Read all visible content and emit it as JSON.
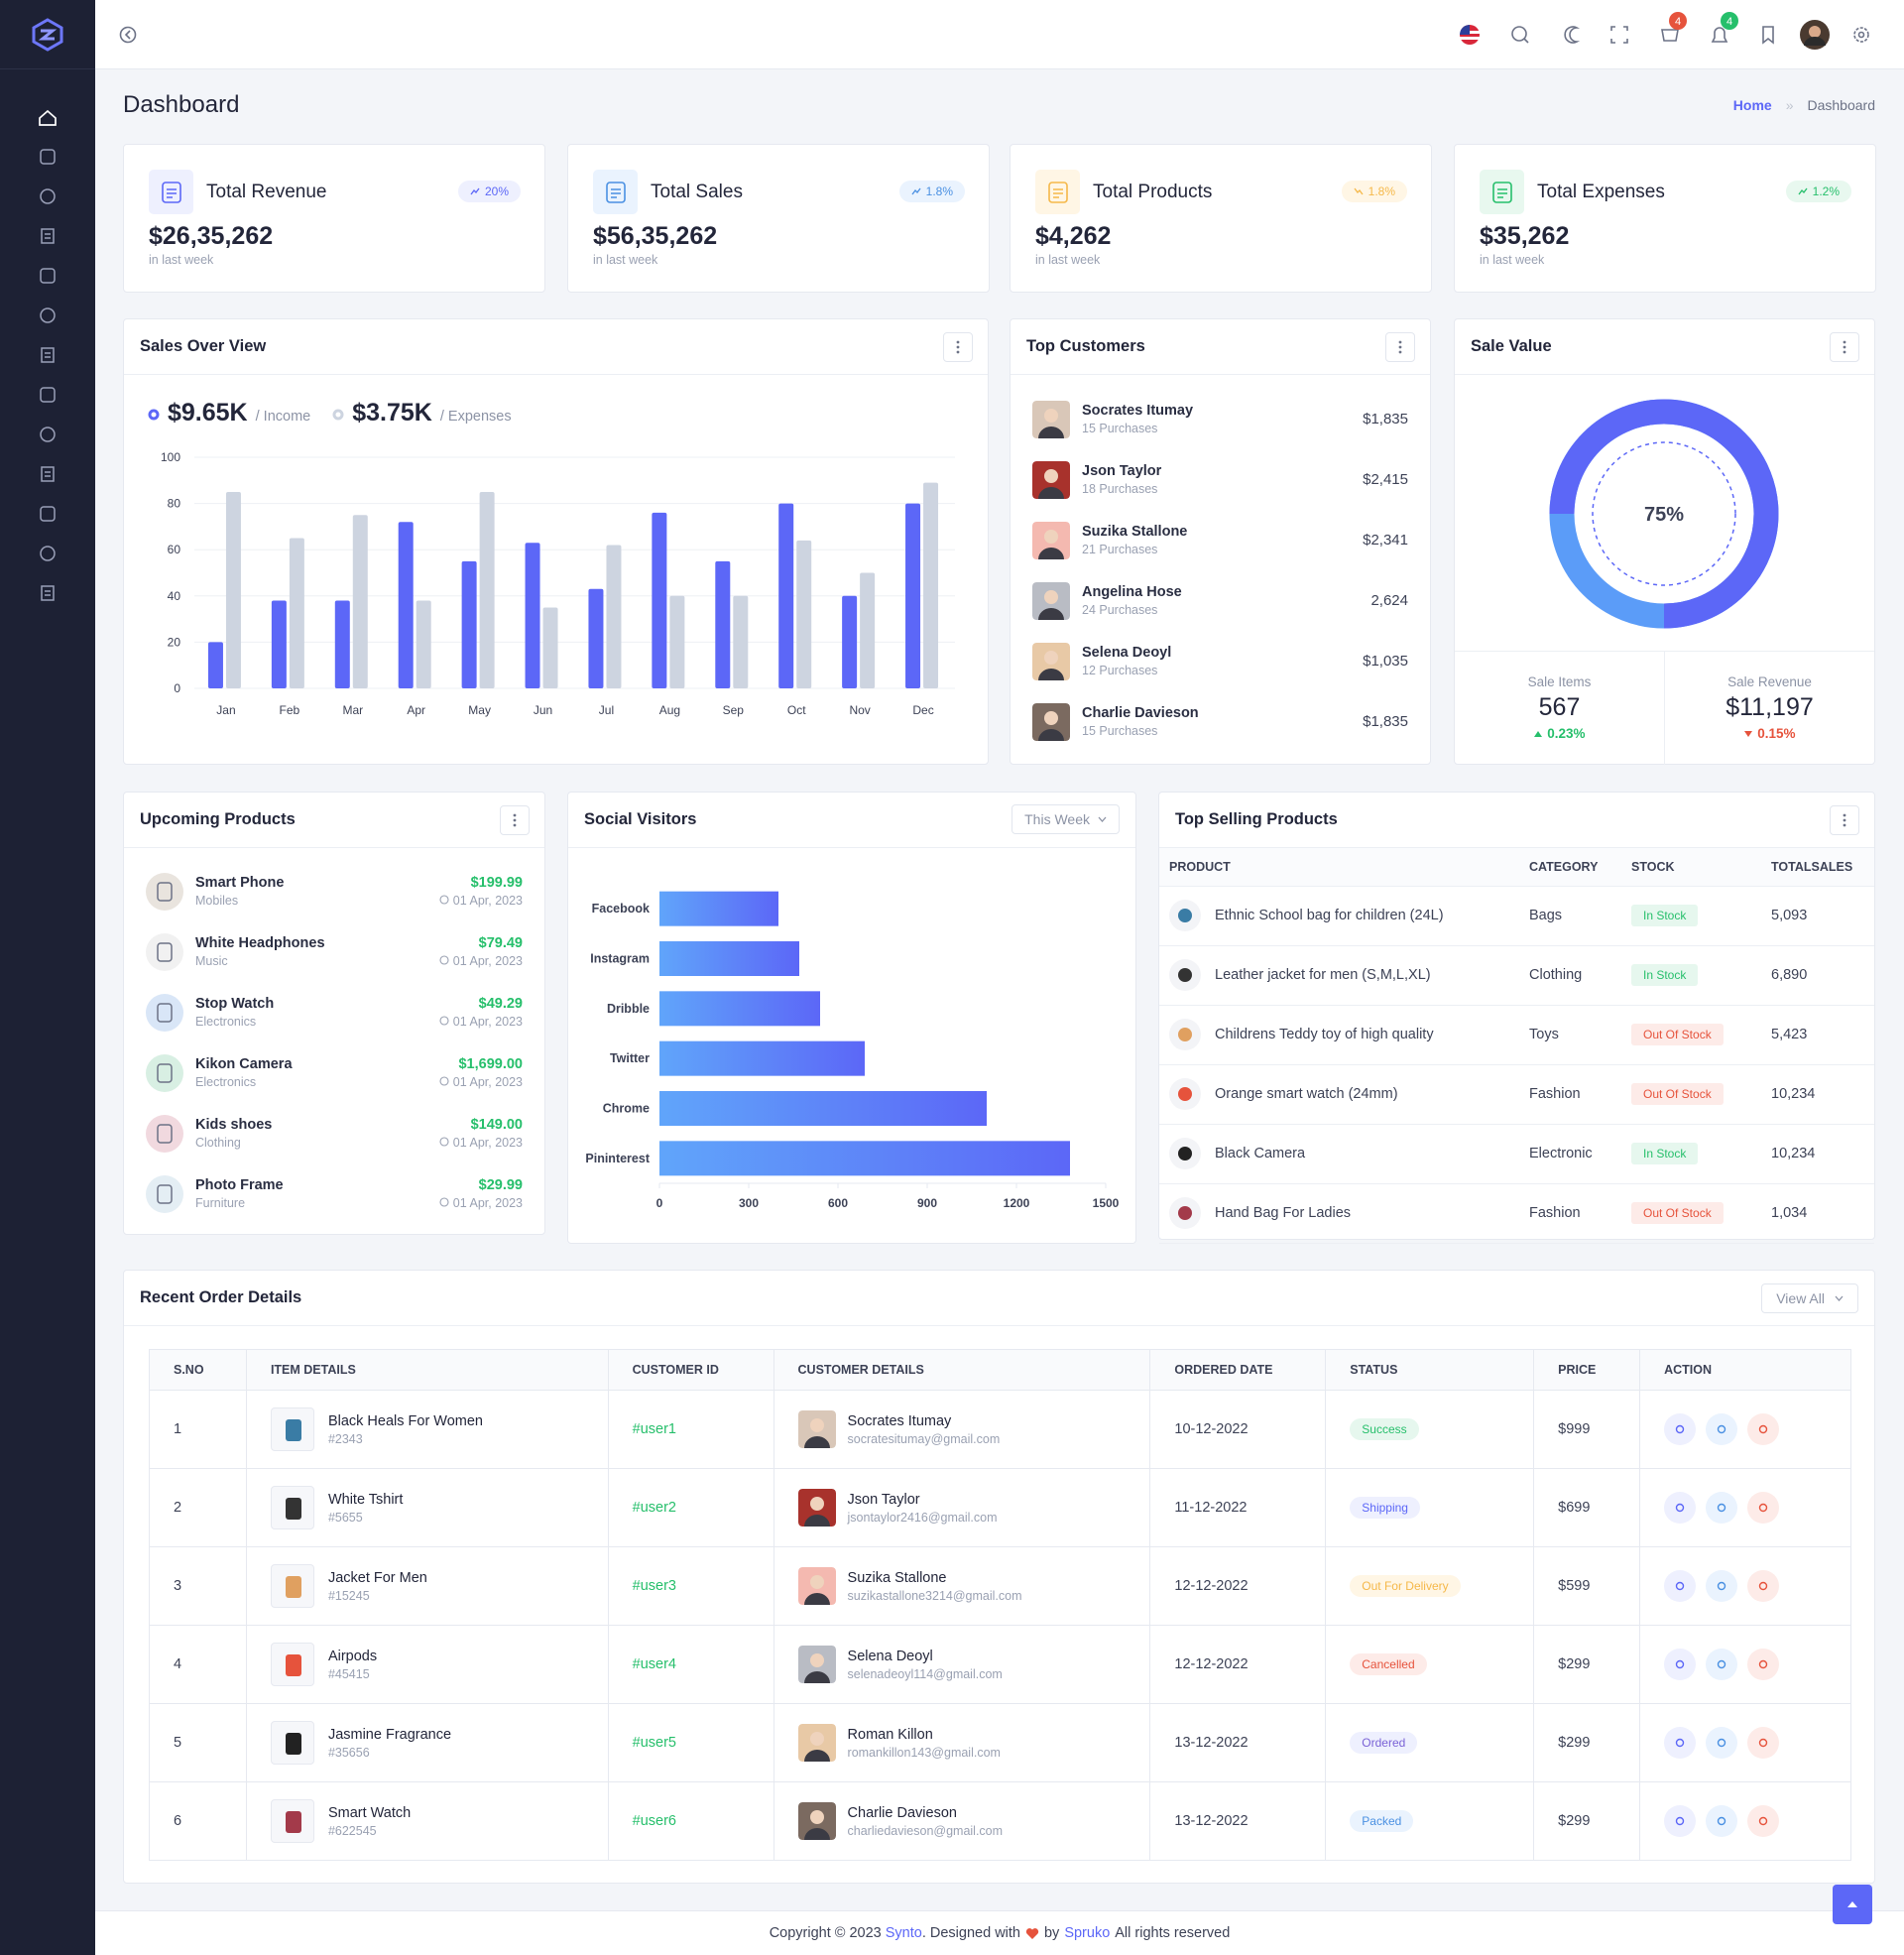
{
  "header": {
    "cart_badge": 4,
    "notifications_badge": 4
  },
  "page": {
    "title": "Dashboard",
    "breadcrumb": [
      "Home",
      "Dashboard"
    ]
  },
  "stats": [
    {
      "title": "Total Revenue",
      "value": "$26,35,262",
      "change": "20%",
      "note": "in last week"
    },
    {
      "title": "Total Sales",
      "value": "$56,35,262",
      "change": "1.8%",
      "note": "in last week"
    },
    {
      "title": "Total Products",
      "value": "$4,262",
      "change": "1.8%",
      "note": "in last week"
    },
    {
      "title": "Total Expenses",
      "value": "$35,262",
      "change": "1.2%",
      "note": "in last week"
    }
  ],
  "sales_overview": {
    "title": "Sales Over View",
    "income": "$9.65K",
    "expenses": "$3.75K"
  },
  "top_customers": {
    "title": "Top Customers",
    "items": [
      {
        "name": "Socrates Itumay",
        "purchases": "15 Purchases",
        "amount": "$1,835"
      },
      {
        "name": "Json Taylor",
        "purchases": "18 Purchases",
        "amount": "$2,415"
      },
      {
        "name": "Suzika Stallone",
        "purchases": "21 Purchases",
        "amount": "$2,341"
      },
      {
        "name": "Angelina Hose",
        "purchases": "24 Purchases",
        "amount": "2,624"
      },
      {
        "name": "Selena Deoyl",
        "purchases": "12 Purchases",
        "amount": "$1,035"
      },
      {
        "name": "Charlie Davieson",
        "purchases": "15 Purchases",
        "amount": "$1,835"
      }
    ]
  },
  "sale_value": {
    "title": "Sale Value",
    "items_label": "Sale Items",
    "items": "567",
    "items_change": "0.23%",
    "revenue_label": "Sale Revenue",
    "revenue": "$11,197",
    "revenue_change": "0.15%"
  },
  "upcoming_products": {
    "title": "Upcoming Products",
    "items": [
      {
        "name": "Smart Phone",
        "category": "Mobiles",
        "price": "$199.99",
        "date": "01 Apr, 2023"
      },
      {
        "name": "White Headphones",
        "category": "Music",
        "price": "$79.49",
        "date": "01 Apr, 2023"
      },
      {
        "name": "Stop Watch",
        "category": "Electronics",
        "price": "$49.29",
        "date": "01 Apr, 2023"
      },
      {
        "name": "Kikon Camera",
        "category": "Electronics",
        "price": "$1,699.00",
        "date": "01 Apr, 2023"
      },
      {
        "name": "Kids shoes",
        "category": "Clothing",
        "price": "$149.00",
        "date": "01 Apr, 2023"
      },
      {
        "name": "Photo Frame",
        "category": "Furniture",
        "price": "$29.99",
        "date": "01 Apr, 2023"
      }
    ]
  },
  "social_visitors": {
    "title": "Social Visitors",
    "filter": "This Week"
  },
  "top_selling": {
    "title": "Top Selling Products",
    "columns": [
      "PRODUCT",
      "CATEGORY",
      "STOCK",
      "TOTALSALES"
    ],
    "rows": [
      [
        "Ethnic School bag for children (24L)",
        "Bags",
        "In Stock",
        "5,093"
      ],
      [
        "Leather jacket for men (S,M,L,XL)",
        "Clothing",
        "In Stock",
        "6,890"
      ],
      [
        "Childrens Teddy toy of high quality",
        "Toys",
        "Out Of Stock",
        "5,423"
      ],
      [
        "Orange smart watch (24mm)",
        "Fashion",
        "Out Of Stock",
        "10,234"
      ],
      [
        "Black Camera",
        "Electronic",
        "In Stock",
        "10,234"
      ],
      [
        "Hand Bag For Ladies",
        "Fashion",
        "Out Of Stock",
        "1,034"
      ]
    ]
  },
  "recent_orders": {
    "title": "Recent Order Details",
    "button": "View All",
    "columns": [
      "S.NO",
      "ITEM DETAILS",
      "CUSTOMER ID",
      "CUSTOMER DETAILS",
      "ORDERED DATE",
      "STATUS",
      "PRICE",
      "ACTION"
    ],
    "rows": [
      {
        "sno": "1",
        "item": "Black Heals For Women",
        "item_id": "#2343",
        "customer_id": "#user1",
        "customer": "Socrates Itumay",
        "email": "socratesitumay@gmail.com",
        "date": "10-12-2022",
        "status": "Success",
        "price": "$999"
      },
      {
        "sno": "2",
        "item": "White Tshirt",
        "item_id": "#5655",
        "customer_id": "#user2",
        "customer": "Json Taylor",
        "email": "jsontaylor2416@gmail.com",
        "date": "11-12-2022",
        "status": "Shipping",
        "price": "$699"
      },
      {
        "sno": "3",
        "item": "Jacket For Men",
        "item_id": "#15245",
        "customer_id": "#user3",
        "customer": "Suzika Stallone",
        "email": "suzikastallone3214@gmail.com",
        "date": "12-12-2022",
        "status": "Out For Delivery",
        "price": "$599"
      },
      {
        "sno": "4",
        "item": "Airpods",
        "item_id": "#45415",
        "customer_id": "#user4",
        "customer": "Selena Deoyl",
        "email": "selenadeoyl114@gmail.com",
        "date": "12-12-2022",
        "status": "Cancelled",
        "price": "$299"
      },
      {
        "sno": "5",
        "item": "Jasmine Fragrance",
        "item_id": "#35656",
        "customer_id": "#user5",
        "customer": "Roman Killon",
        "email": "romankillon143@gmail.com",
        "date": "13-12-2022",
        "status": "Ordered",
        "price": "$299"
      },
      {
        "sno": "6",
        "item": "Smart Watch",
        "item_id": "#622545",
        "customer_id": "#user6",
        "customer": "Charlie Davieson",
        "email": "charliedavieson@gmail.com",
        "date": "13-12-2022",
        "status": "Packed",
        "price": "$299"
      }
    ]
  },
  "footer": {
    "parts": [
      "Copyright © 2023",
      "Synto",
      ". Designed with",
      "by",
      "Spruko",
      "All rights reserved"
    ]
  },
  "chart_data": [
    {
      "type": "bar",
      "categories": [
        "Jan",
        "Feb",
        "Mar",
        "Apr",
        "May",
        "Jun",
        "Jul",
        "Aug",
        "Sep",
        "Oct",
        "Nov",
        "Dec"
      ],
      "series": [
        {
          "name": "/ Income",
          "color": "#5c67f7",
          "values": [
            20,
            38,
            38,
            72,
            55,
            63,
            43,
            76,
            55,
            80,
            40,
            80
          ]
        },
        {
          "name": "/ Expenses",
          "color": "#cdd4e0",
          "values": [
            85,
            65,
            75,
            38,
            85,
            35,
            62,
            40,
            40,
            64,
            50,
            89
          ]
        }
      ],
      "ylim": [
        0,
        100
      ],
      "yticks": [
        0,
        20,
        40,
        60,
        80,
        100
      ],
      "grid": true
    },
    {
      "type": "donut",
      "value": 75,
      "value_label": "75%",
      "color": "#5c67f7",
      "track_color": "#5b9cf8"
    },
    {
      "type": "bar",
      "horizontal": true,
      "categories": [
        "Facebook",
        "Instagram",
        "Dribble",
        "Twitter",
        "Chrome",
        "Pininterest"
      ],
      "values": [
        400,
        470,
        540,
        690,
        1100,
        1380
      ],
      "color": "#5c67f7",
      "gradient_from": "#60a5fa",
      "xlim": [
        0,
        1500
      ],
      "xticks": [
        0,
        300,
        600,
        900,
        1200,
        1500
      ]
    }
  ]
}
